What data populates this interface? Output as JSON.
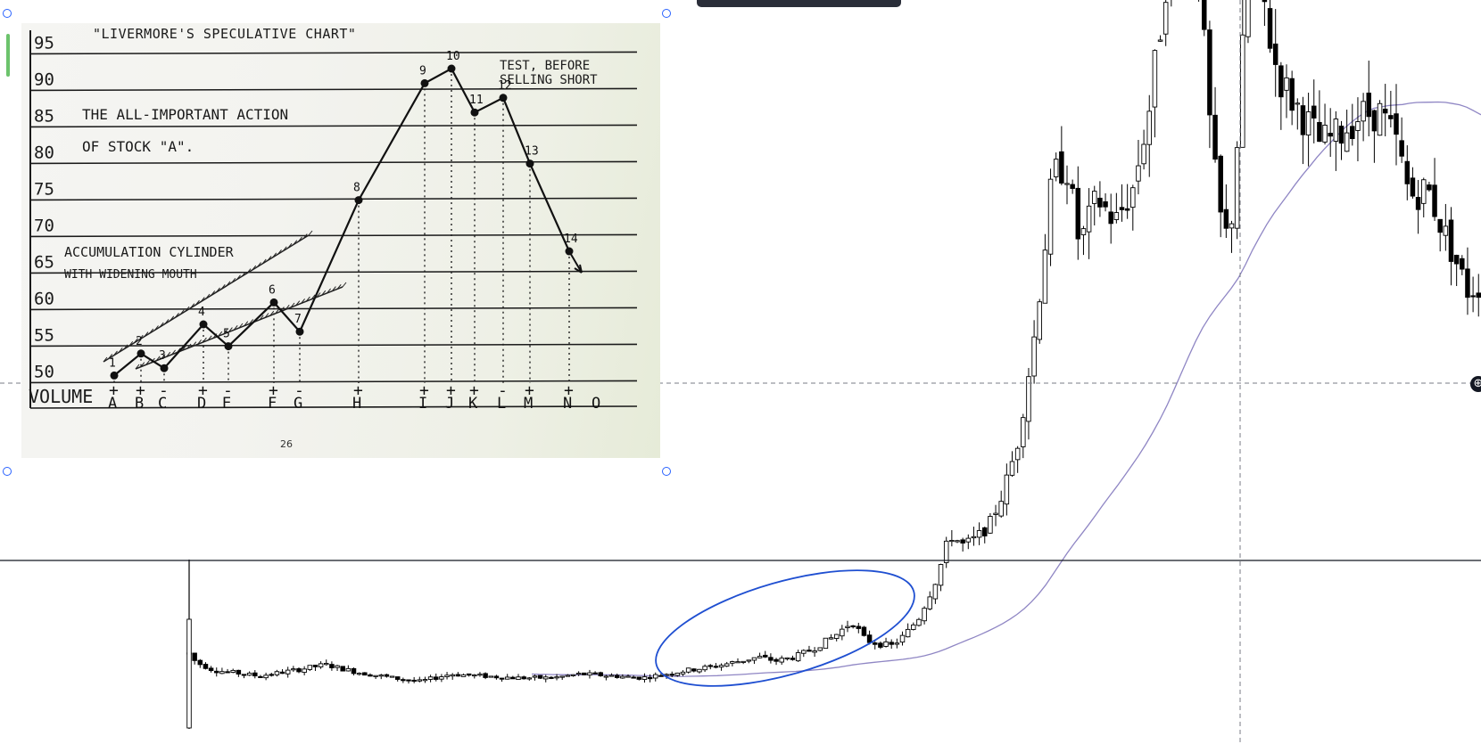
{
  "sketch": {
    "title": "\"LIVERMORE'S   SPECULATIVE   CHART\"",
    "text_lines": [
      "THE ALL-IMPORTANT ACTION",
      "OF  STOCK \"A\"."
    ],
    "note_lines": [
      "TEST, BEFORE",
      "SELLING SHORT"
    ],
    "cylinder_lines": [
      "ACCUMULATION  CYLINDER",
      "WITH  WIDENING  MOUTH"
    ],
    "page_number": "26",
    "volume_label": "VOLUME",
    "y_ticks": [
      "95",
      "90",
      "85",
      "80",
      "75",
      "70",
      "65",
      "60",
      "55",
      "50"
    ],
    "letters": [
      "A",
      "B",
      "C",
      "D",
      "E",
      "F",
      "G",
      "H",
      "I",
      "J",
      "K",
      "L",
      "M",
      "N",
      "O"
    ],
    "volume_marks": [
      "+",
      "+",
      "-",
      "+",
      "-",
      "+",
      "-",
      "+",
      "+",
      "+",
      "+",
      "-",
      "+",
      "+",
      ""
    ]
  },
  "chart_data": [
    {
      "type": "line",
      "title": "\"LIVERMORE'S SPECULATIVE CHART\"",
      "xlabel": "VOLUME",
      "ylabel": "",
      "ylim": [
        47,
        97
      ],
      "x": [
        "1",
        "2",
        "3",
        "4",
        "5",
        "6",
        "7",
        "8",
        "9",
        "10",
        "11",
        "12",
        "13",
        "14"
      ],
      "series": [
        {
          "values": [
            50,
            53,
            51,
            57,
            54,
            60,
            56,
            74,
            90,
            92,
            86,
            88,
            79,
            67
          ]
        }
      ],
      "grid": true
    },
    {
      "type": "candlestick",
      "title": "",
      "xlabel": "",
      "ylabel": "",
      "legend": "none",
      "grid": false,
      "colors": {
        "up": "#ffffff",
        "down": "#000000",
        "wick": "#000000",
        "moving_average": "#8f86c4",
        "ellipse": "#1f4fd1",
        "crosshair": "#787b86"
      }
    }
  ],
  "overlay": {
    "zoom_symbol": "⊕"
  }
}
